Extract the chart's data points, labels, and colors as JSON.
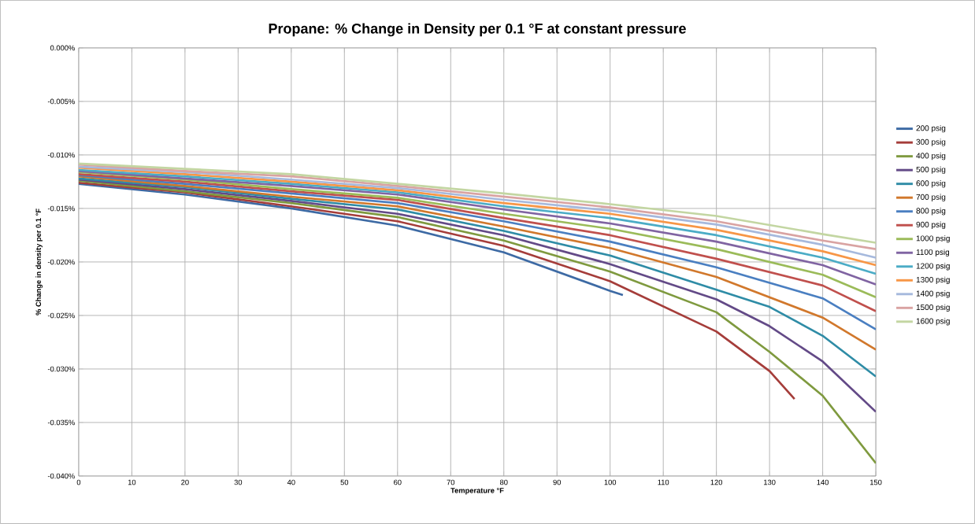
{
  "chart_data": {
    "type": "line",
    "title": "Propane: % Change in Density per 0.1 °F at constant pressure",
    "xlabel": "Temperature °F",
    "ylabel": "% Change in density per 0.1 °F",
    "xlim": [
      0,
      150
    ],
    "xticks": [
      0,
      10,
      20,
      30,
      40,
      50,
      60,
      70,
      80,
      90,
      100,
      110,
      120,
      130,
      140,
      150
    ],
    "ylim": [
      -0.04,
      0
    ],
    "yticks": [
      {
        "value": -0.04,
        "label": "-0.040%"
      },
      {
        "value": -0.035,
        "label": "-0.035%"
      },
      {
        "value": -0.03,
        "label": "-0.030%"
      },
      {
        "value": -0.025,
        "label": "-0.025%"
      },
      {
        "value": -0.02,
        "label": "-0.020%"
      },
      {
        "value": -0.015,
        "label": "-0.015%"
      },
      {
        "value": -0.01,
        "label": "-0.010%"
      },
      {
        "value": -0.005,
        "label": "-0.005%"
      },
      {
        "value": 0,
        "label": "0.000%"
      }
    ],
    "grid": true,
    "legend": "right",
    "marker": "none",
    "line_style": "solid",
    "series": [
      {
        "name": "200 psig",
        "color": "#3d6aa4",
        "x": [
          0,
          20,
          40,
          60,
          80,
          100,
          102.4
        ],
        "values": [
          -0.0127,
          -0.0137,
          -0.015,
          -0.0166,
          -0.0191,
          -0.0227,
          -0.0231
        ]
      },
      {
        "name": "300 psig",
        "color": "#a53d3a",
        "x": [
          0,
          20,
          40,
          60,
          80,
          100,
          120,
          130,
          134.7
        ],
        "values": [
          -0.0126,
          -0.0135,
          -0.0148,
          -0.0162,
          -0.0185,
          -0.0218,
          -0.0265,
          -0.0302,
          -0.0328
        ]
      },
      {
        "name": "400 psig",
        "color": "#7f9a3f",
        "x": [
          0,
          20,
          40,
          60,
          80,
          100,
          120,
          130,
          140,
          150
        ],
        "values": [
          -0.0124,
          -0.0134,
          -0.0145,
          -0.0158,
          -0.018,
          -0.0209,
          -0.0247,
          -0.0284,
          -0.0325,
          -0.0388
        ]
      },
      {
        "name": "500 psig",
        "color": "#634a87",
        "x": [
          0,
          20,
          40,
          60,
          80,
          100,
          120,
          130,
          140,
          150
        ],
        "values": [
          -0.0123,
          -0.0132,
          -0.0143,
          -0.0155,
          -0.0175,
          -0.0202,
          -0.0235,
          -0.026,
          -0.0293,
          -0.034
        ]
      },
      {
        "name": "600 psig",
        "color": "#2f8ca6",
        "x": [
          0,
          20,
          40,
          60,
          80,
          100,
          120,
          130,
          140,
          150
        ],
        "values": [
          -0.0122,
          -0.013,
          -0.0141,
          -0.0151,
          -0.0171,
          -0.0194,
          -0.0226,
          -0.0242,
          -0.0269,
          -0.0307
        ]
      },
      {
        "name": "700 psig",
        "color": "#d1782c",
        "x": [
          0,
          20,
          40,
          60,
          80,
          100,
          120,
          140,
          150
        ],
        "values": [
          -0.012,
          -0.0129,
          -0.0139,
          -0.0148,
          -0.0167,
          -0.0187,
          -0.0214,
          -0.0252,
          -0.0282
        ]
      },
      {
        "name": "800 psig",
        "color": "#4a7fc1",
        "x": [
          0,
          20,
          40,
          60,
          80,
          100,
          120,
          140,
          150
        ],
        "values": [
          -0.0119,
          -0.0127,
          -0.0136,
          -0.0145,
          -0.0162,
          -0.0181,
          -0.0205,
          -0.0234,
          -0.0263
        ]
      },
      {
        "name": "900 psig",
        "color": "#c0504d",
        "x": [
          0,
          20,
          40,
          60,
          80,
          100,
          120,
          140,
          150
        ],
        "values": [
          -0.0118,
          -0.0125,
          -0.0134,
          -0.0142,
          -0.0159,
          -0.0175,
          -0.0197,
          -0.0222,
          -0.0246
        ]
      },
      {
        "name": "1000 psig",
        "color": "#9bbb59",
        "x": [
          0,
          20,
          40,
          60,
          80,
          100,
          120,
          140,
          150
        ],
        "values": [
          -0.0116,
          -0.0123,
          -0.0132,
          -0.014,
          -0.0155,
          -0.0169,
          -0.0188,
          -0.0212,
          -0.0233
        ]
      },
      {
        "name": "1100 psig",
        "color": "#8064a2",
        "x": [
          0,
          20,
          40,
          60,
          80,
          100,
          120,
          140,
          150
        ],
        "values": [
          -0.0115,
          -0.0122,
          -0.0129,
          -0.0137,
          -0.0151,
          -0.0164,
          -0.0181,
          -0.0203,
          -0.0221
        ]
      },
      {
        "name": "1200 psig",
        "color": "#4bacc6",
        "x": [
          0,
          20,
          40,
          60,
          80,
          100,
          120,
          140,
          150
        ],
        "values": [
          -0.0114,
          -0.012,
          -0.0127,
          -0.0135,
          -0.0148,
          -0.0159,
          -0.0175,
          -0.0196,
          -0.0211
        ]
      },
      {
        "name": "1300 psig",
        "color": "#f79646",
        "x": [
          0,
          20,
          40,
          60,
          80,
          100,
          120,
          140,
          150
        ],
        "values": [
          -0.0112,
          -0.0118,
          -0.0125,
          -0.0133,
          -0.0145,
          -0.0155,
          -0.017,
          -0.019,
          -0.0203
        ]
      },
      {
        "name": "1400 psig",
        "color": "#a6b9dd",
        "x": [
          0,
          20,
          40,
          60,
          80,
          100,
          120,
          140,
          150
        ],
        "values": [
          -0.0111,
          -0.0116,
          -0.0123,
          -0.0131,
          -0.0142,
          -0.0152,
          -0.0165,
          -0.0184,
          -0.0196
        ]
      },
      {
        "name": "1500 psig",
        "color": "#d9a3a2",
        "x": [
          0,
          20,
          40,
          60,
          80,
          100,
          120,
          140,
          150
        ],
        "values": [
          -0.0109,
          -0.0115,
          -0.012,
          -0.0129,
          -0.0139,
          -0.0149,
          -0.0162,
          -0.018,
          -0.0188
        ]
      },
      {
        "name": "1600 psig",
        "color": "#c3d6a2",
        "x": [
          0,
          20,
          40,
          60,
          80,
          100,
          120,
          140,
          150
        ],
        "values": [
          -0.0108,
          -0.0113,
          -0.0118,
          -0.0127,
          -0.0136,
          -0.0146,
          -0.0157,
          -0.0174,
          -0.0182
        ]
      }
    ]
  }
}
